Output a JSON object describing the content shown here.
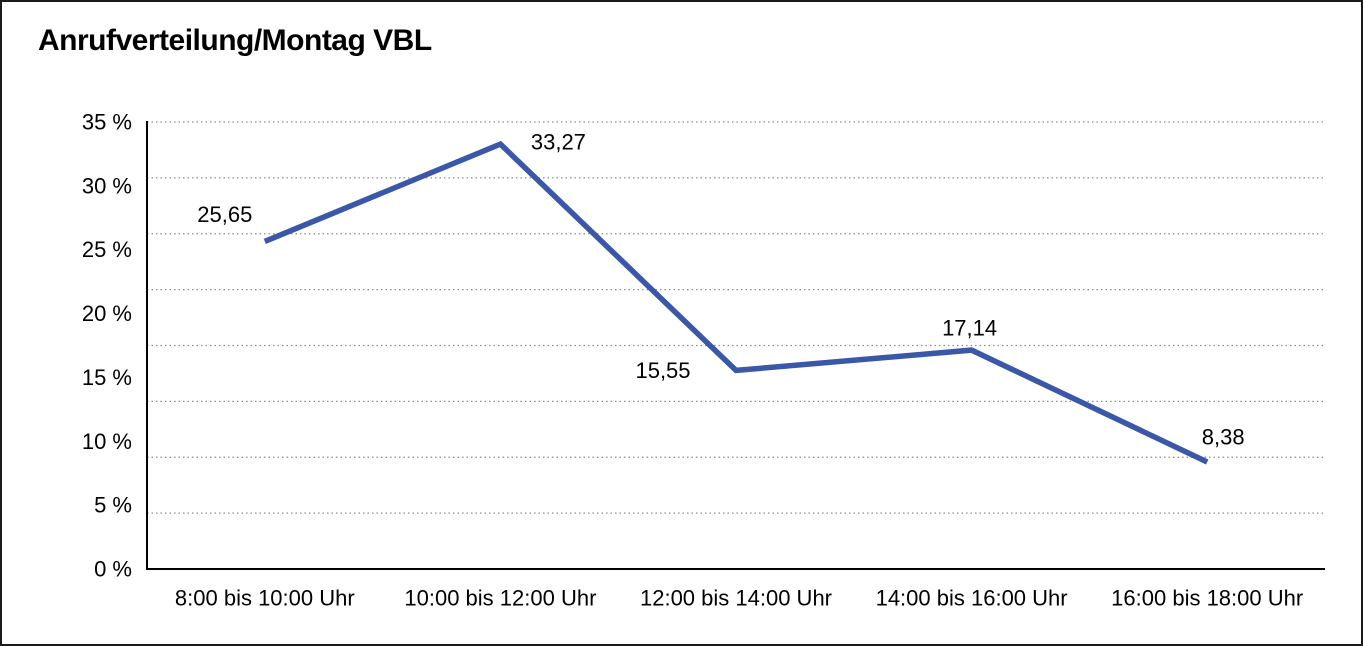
{
  "window": {
    "background": "#FFFFFF",
    "frame_color": "#1A1A1A"
  },
  "chart_data": {
    "type": "line",
    "title": "Anrufverteilung/Montag VBL",
    "categories": [
      "8:00 bis 10:00 Uhr",
      "10:00 bis 12:00 Uhr",
      "12:00 bis 14:00 Uhr",
      "14:00 bis 16:00 Uhr",
      "16:00 bis 18:00 Uhr"
    ],
    "values": [
      25.65,
      33.27,
      15.55,
      17.14,
      8.38
    ],
    "point_labels": [
      "25,65",
      "33,27",
      "15,55",
      "17,14",
      "8,38"
    ],
    "y_tick_labels": [
      "35 %",
      "30 %",
      "25 %",
      "20 %",
      "15 %",
      "10 %",
      "5 %",
      "0 %"
    ],
    "ylim": [
      0,
      35
    ],
    "xlabel": "",
    "ylabel": "",
    "grid": "horizontal-dotted",
    "grid_intervals": 8,
    "legend": "none",
    "line_color": "#3A57A8",
    "grid_color": "#8C8C8C",
    "axis_color": "#000000",
    "text_color": "#000000"
  }
}
